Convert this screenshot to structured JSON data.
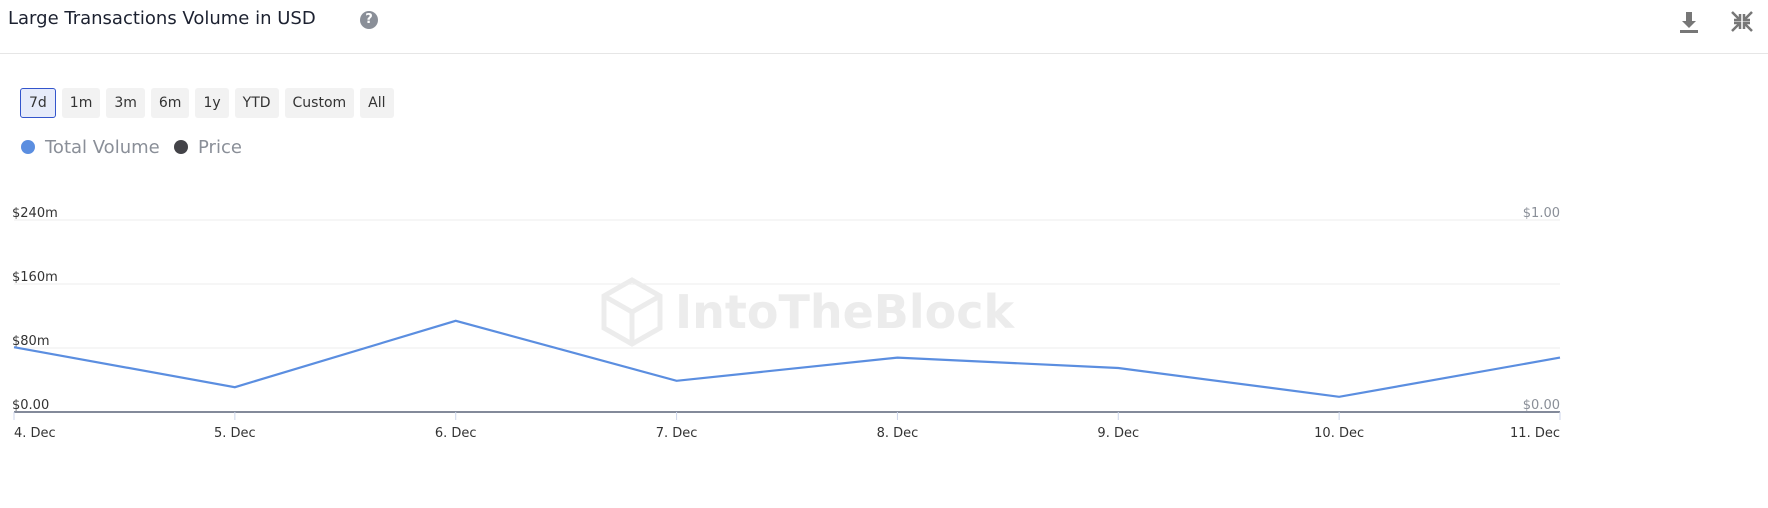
{
  "range_buttons": [
    "7d",
    "1m",
    "3m",
    "6m",
    "1y",
    "YTD",
    "Custom",
    "All"
  ],
  "active_button": 0,
  "watermark": "IntoTheBlock",
  "chart_data": {
    "type": "line",
    "title": "Large Transactions Volume in USD",
    "categories": [
      "4. Dec",
      "5. Dec",
      "6. Dec",
      "7. Dec",
      "8. Dec",
      "9. Dec",
      "10. Dec",
      "11. Dec"
    ],
    "series": [
      {
        "name": "Total Volume",
        "color": "#5b8ee0",
        "values": [
          81000000,
          31000000,
          114000000,
          39000000,
          68000000,
          55000000,
          19000000,
          68000000
        ]
      },
      {
        "name": "Price",
        "color": "#434348",
        "axis": "y2",
        "values": [
          null,
          null,
          null,
          null,
          null,
          null,
          null,
          null
        ]
      }
    ],
    "ylim": [
      0,
      240000000
    ],
    "yticks": [
      {
        "value": 0,
        "label": "$0.00"
      },
      {
        "value": 80000000,
        "label": "$80m"
      },
      {
        "value": 160000000,
        "label": "$160m"
      },
      {
        "value": 240000000,
        "label": "$240m"
      }
    ],
    "y2lim": [
      0,
      1
    ],
    "y2ticks": [
      {
        "value": 0,
        "label": "$0.00"
      },
      {
        "value": 1,
        "label": "$1.00"
      }
    ],
    "grid": true
  }
}
